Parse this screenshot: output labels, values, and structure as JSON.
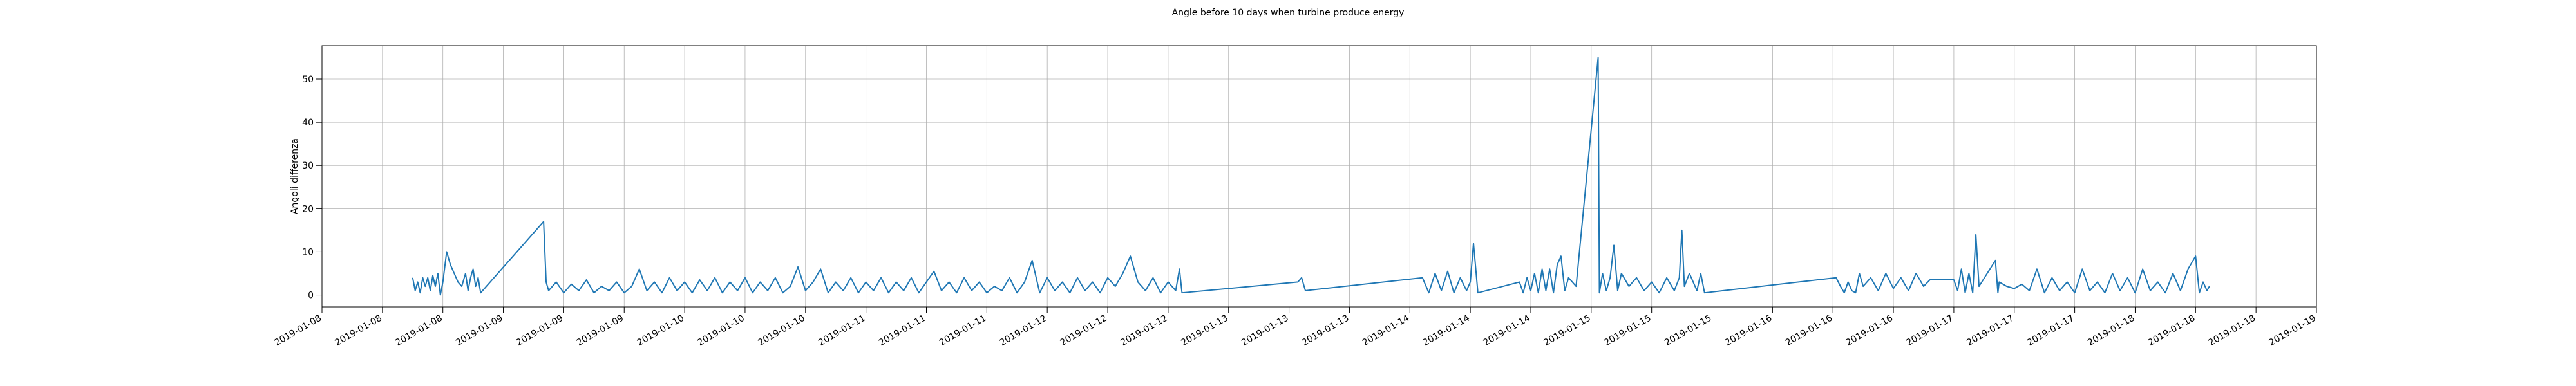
{
  "chart_data": {
    "type": "line",
    "title": "Angle before 10 days when turbine produce energy",
    "ylabel": "Angoli differenza",
    "color": "#1f77b4",
    "grid": true,
    "x": [
      "2019-01-08 12:00",
      "2019-01-08 12:20",
      "2019-01-08 12:40",
      "2019-01-08 13:00",
      "2019-01-08 13:20",
      "2019-01-08 13:40",
      "2019-01-08 14:00",
      "2019-01-08 14:20",
      "2019-01-08 14:40",
      "2019-01-08 15:00",
      "2019-01-08 15:20",
      "2019-01-08 15:40",
      "2019-01-08 16:00",
      "2019-01-08 16:30",
      "2019-01-08 17:00",
      "2019-01-08 17:30",
      "2019-01-08 18:00",
      "2019-01-08 18:30",
      "2019-01-08 19:00",
      "2019-01-08 19:20",
      "2019-01-08 19:40",
      "2019-01-08 20:00",
      "2019-01-08 20:20",
      "2019-01-08 20:40",
      "2019-01-08 21:00",
      "2019-01-09 05:20",
      "2019-01-09 05:40",
      "2019-01-09 06:00",
      "2019-01-09 07:00",
      "2019-01-09 08:00",
      "2019-01-09 09:00",
      "2019-01-09 10:00",
      "2019-01-09 11:00",
      "2019-01-09 12:00",
      "2019-01-09 13:00",
      "2019-01-09 14:00",
      "2019-01-09 15:00",
      "2019-01-09 16:00",
      "2019-01-09 17:00",
      "2019-01-09 18:00",
      "2019-01-09 19:00",
      "2019-01-09 20:00",
      "2019-01-09 21:00",
      "2019-01-09 22:00",
      "2019-01-09 23:00",
      "2019-01-10 00:00",
      "2019-01-10 01:00",
      "2019-01-10 02:00",
      "2019-01-10 03:00",
      "2019-01-10 04:00",
      "2019-01-10 05:00",
      "2019-01-10 06:00",
      "2019-01-10 07:00",
      "2019-01-10 08:00",
      "2019-01-10 09:00",
      "2019-01-10 10:00",
      "2019-01-10 11:00",
      "2019-01-10 12:00",
      "2019-01-10 13:00",
      "2019-01-10 14:00",
      "2019-01-10 15:00",
      "2019-01-10 16:00",
      "2019-01-10 17:00",
      "2019-01-10 18:00",
      "2019-01-10 19:00",
      "2019-01-10 20:00",
      "2019-01-10 21:00",
      "2019-01-10 22:00",
      "2019-01-10 23:00",
      "2019-01-11 00:00",
      "2019-01-11 01:00",
      "2019-01-11 02:00",
      "2019-01-11 03:00",
      "2019-01-11 04:00",
      "2019-01-11 05:00",
      "2019-01-11 06:00",
      "2019-01-11 07:00",
      "2019-01-11 08:00",
      "2019-01-11 09:00",
      "2019-01-11 10:00",
      "2019-01-11 11:00",
      "2019-01-11 12:00",
      "2019-01-11 13:00",
      "2019-01-11 14:00",
      "2019-01-11 15:00",
      "2019-01-11 16:00",
      "2019-01-11 17:00",
      "2019-01-11 18:00",
      "2019-01-11 19:00",
      "2019-01-11 20:00",
      "2019-01-11 21:00",
      "2019-01-11 22:00",
      "2019-01-11 23:00",
      "2019-01-12 00:00",
      "2019-01-12 01:00",
      "2019-01-12 02:00",
      "2019-01-12 03:00",
      "2019-01-12 04:00",
      "2019-01-12 05:00",
      "2019-01-12 06:00",
      "2019-01-12 07:00",
      "2019-01-12 08:00",
      "2019-01-12 09:00",
      "2019-01-12 10:00",
      "2019-01-12 11:00",
      "2019-01-12 12:00",
      "2019-01-12 13:00",
      "2019-01-12 14:00",
      "2019-01-12 15:00",
      "2019-01-12 16:00",
      "2019-01-12 17:00",
      "2019-01-12 17:30",
      "2019-01-12 17:50",
      "2019-01-13 09:10",
      "2019-01-13 09:40",
      "2019-01-13 10:10",
      "2019-01-14 01:40",
      "2019-01-14 02:30",
      "2019-01-14 03:20",
      "2019-01-14 04:10",
      "2019-01-14 05:00",
      "2019-01-14 05:50",
      "2019-01-14 06:40",
      "2019-01-14 07:30",
      "2019-01-14 08:00",
      "2019-01-14 08:25",
      "2019-01-14 09:00",
      "2019-01-14 14:30",
      "2019-01-14 15:00",
      "2019-01-14 15:30",
      "2019-01-14 16:00",
      "2019-01-14 16:30",
      "2019-01-14 17:00",
      "2019-01-14 17:30",
      "2019-01-14 18:00",
      "2019-01-14 18:30",
      "2019-01-14 19:00",
      "2019-01-14 19:30",
      "2019-01-14 20:00",
      "2019-01-14 20:30",
      "2019-01-14 21:00",
      "2019-01-14 22:00",
      "2019-01-15 00:55",
      "2019-01-15 01:05",
      "2019-01-15 01:30",
      "2019-01-15 02:00",
      "2019-01-15 02:30",
      "2019-01-15 03:00",
      "2019-01-15 03:30",
      "2019-01-15 04:00",
      "2019-01-15 05:00",
      "2019-01-15 06:00",
      "2019-01-15 07:00",
      "2019-01-15 08:00",
      "2019-01-15 09:00",
      "2019-01-15 10:00",
      "2019-01-15 11:00",
      "2019-01-15 11:40",
      "2019-01-15 12:00",
      "2019-01-15 12:20",
      "2019-01-15 13:00",
      "2019-01-15 14:00",
      "2019-01-15 14:30",
      "2019-01-15 15:00",
      "2019-01-16 08:25",
      "2019-01-16 09:00",
      "2019-01-16 09:30",
      "2019-01-16 10:00",
      "2019-01-16 10:30",
      "2019-01-16 11:00",
      "2019-01-16 11:30",
      "2019-01-16 12:00",
      "2019-01-16 13:00",
      "2019-01-16 14:00",
      "2019-01-16 15:00",
      "2019-01-16 16:00",
      "2019-01-16 17:00",
      "2019-01-16 18:00",
      "2019-01-16 19:00",
      "2019-01-16 20:00",
      "2019-01-16 20:50",
      "2019-01-17 00:00",
      "2019-01-17 00:30",
      "2019-01-17 01:00",
      "2019-01-17 01:30",
      "2019-01-17 02:00",
      "2019-01-17 02:30",
      "2019-01-17 02:55",
      "2019-01-17 03:20",
      "2019-01-17 05:30",
      "2019-01-17 05:50",
      "2019-01-17 06:00",
      "2019-01-17 07:00",
      "2019-01-17 08:00",
      "2019-01-17 09:00",
      "2019-01-17 10:00",
      "2019-01-17 11:00",
      "2019-01-17 12:00",
      "2019-01-17 13:00",
      "2019-01-17 14:00",
      "2019-01-17 15:00",
      "2019-01-17 16:00",
      "2019-01-17 17:00",
      "2019-01-17 18:00",
      "2019-01-17 19:00",
      "2019-01-17 20:00",
      "2019-01-17 21:00",
      "2019-01-17 22:00",
      "2019-01-17 23:00",
      "2019-01-18 00:00",
      "2019-01-18 01:00",
      "2019-01-18 02:00",
      "2019-01-18 03:00",
      "2019-01-18 04:00",
      "2019-01-18 05:00",
      "2019-01-18 06:00",
      "2019-01-18 07:00",
      "2019-01-18 08:00",
      "2019-01-18 08:30",
      "2019-01-18 09:00",
      "2019-01-18 09:30",
      "2019-01-18 09:50"
    ],
    "values": [
      4,
      1,
      3,
      0.5,
      4,
      2,
      4,
      1,
      4.5,
      2,
      5,
      0,
      3,
      10,
      7,
      5,
      3,
      2,
      5,
      1,
      4,
      6,
      2,
      4,
      0.5,
      17,
      3,
      1,
      3,
      0.5,
      2.5,
      1,
      3.5,
      0.5,
      2,
      1,
      3,
      0.5,
      2,
      6,
      1,
      3,
      0.5,
      4,
      1,
      3,
      0.5,
      3.5,
      1,
      4,
      0.5,
      3,
      1,
      4,
      0.5,
      3,
      1,
      4,
      0.5,
      2,
      6.5,
      1,
      3,
      6,
      0.5,
      3,
      1,
      4,
      0.5,
      3,
      1,
      4,
      0.5,
      3,
      1,
      4,
      0.5,
      3,
      5.5,
      1,
      3,
      0.5,
      4,
      1,
      3,
      0.5,
      2,
      1,
      4,
      0.5,
      3,
      8,
      0.5,
      4,
      1,
      3,
      0.5,
      4,
      1,
      3,
      0.5,
      4,
      2,
      5,
      9,
      3,
      1,
      4,
      0.5,
      3,
      1,
      6,
      0.5,
      3,
      4,
      1,
      4,
      0.5,
      5,
      1,
      5.5,
      0.5,
      4,
      1,
      3,
      12,
      0.5,
      3,
      0.5,
      4,
      1,
      5,
      0.5,
      6,
      1,
      6,
      0.5,
      7,
      9,
      1,
      4,
      2,
      55,
      0.5,
      5,
      1,
      4,
      11.5,
      1,
      5,
      2,
      4,
      1,
      3,
      0.5,
      4,
      1,
      4,
      15,
      2,
      5,
      1,
      5,
      0.5,
      4,
      2,
      0.5,
      3,
      1,
      0.5,
      5,
      2,
      4,
      1,
      5,
      1.5,
      4,
      1,
      5,
      2,
      3.5,
      3.5,
      1,
      6,
      0.5,
      5,
      0.5,
      14,
      2,
      8,
      0.5,
      3,
      2,
      1.5,
      2.5,
      1,
      6,
      0.5,
      4,
      1,
      3,
      0.5,
      6,
      1,
      3,
      0.5,
      5,
      1,
      4,
      0.5,
      6,
      1,
      3,
      0.5,
      5,
      1,
      6,
      9,
      0.5,
      3,
      1,
      2
    ],
    "xlim": [
      "2019-01-08 00:00",
      "2019-01-19 00:00"
    ],
    "xticks": [
      {
        "value": "2019-01-08 00:00",
        "label": "2019-01-08"
      },
      {
        "value": "2019-01-08 08:00",
        "label": "2019-01-08"
      },
      {
        "value": "2019-01-08 16:00",
        "label": "2019-01-08"
      },
      {
        "value": "2019-01-09 00:00",
        "label": "2019-01-09"
      },
      {
        "value": "2019-01-09 08:00",
        "label": "2019-01-09"
      },
      {
        "value": "2019-01-09 16:00",
        "label": "2019-01-09"
      },
      {
        "value": "2019-01-10 00:00",
        "label": "2019-01-10"
      },
      {
        "value": "2019-01-10 08:00",
        "label": "2019-01-10"
      },
      {
        "value": "2019-01-10 16:00",
        "label": "2019-01-10"
      },
      {
        "value": "2019-01-11 00:00",
        "label": "2019-01-11"
      },
      {
        "value": "2019-01-11 08:00",
        "label": "2019-01-11"
      },
      {
        "value": "2019-01-11 16:00",
        "label": "2019-01-11"
      },
      {
        "value": "2019-01-12 00:00",
        "label": "2019-01-12"
      },
      {
        "value": "2019-01-12 08:00",
        "label": "2019-01-12"
      },
      {
        "value": "2019-01-12 16:00",
        "label": "2019-01-12"
      },
      {
        "value": "2019-01-13 00:00",
        "label": "2019-01-13"
      },
      {
        "value": "2019-01-13 08:00",
        "label": "2019-01-13"
      },
      {
        "value": "2019-01-13 16:00",
        "label": "2019-01-13"
      },
      {
        "value": "2019-01-14 00:00",
        "label": "2019-01-14"
      },
      {
        "value": "2019-01-14 08:00",
        "label": "2019-01-14"
      },
      {
        "value": "2019-01-14 16:00",
        "label": "2019-01-14"
      },
      {
        "value": "2019-01-15 00:00",
        "label": "2019-01-15"
      },
      {
        "value": "2019-01-15 08:00",
        "label": "2019-01-15"
      },
      {
        "value": "2019-01-15 16:00",
        "label": "2019-01-15"
      },
      {
        "value": "2019-01-16 00:00",
        "label": "2019-01-16"
      },
      {
        "value": "2019-01-16 08:00",
        "label": "2019-01-16"
      },
      {
        "value": "2019-01-16 16:00",
        "label": "2019-01-16"
      },
      {
        "value": "2019-01-17 00:00",
        "label": "2019-01-17"
      },
      {
        "value": "2019-01-17 08:00",
        "label": "2019-01-17"
      },
      {
        "value": "2019-01-17 16:00",
        "label": "2019-01-17"
      },
      {
        "value": "2019-01-18 00:00",
        "label": "2019-01-18"
      },
      {
        "value": "2019-01-18 08:00",
        "label": "2019-01-18"
      },
      {
        "value": "2019-01-18 16:00",
        "label": "2019-01-18"
      },
      {
        "value": "2019-01-19 00:00",
        "label": "2019-01-19"
      }
    ],
    "ylim": [
      -2.75,
      57.75
    ],
    "yticks": [
      0,
      10,
      20,
      30,
      40,
      50
    ]
  }
}
